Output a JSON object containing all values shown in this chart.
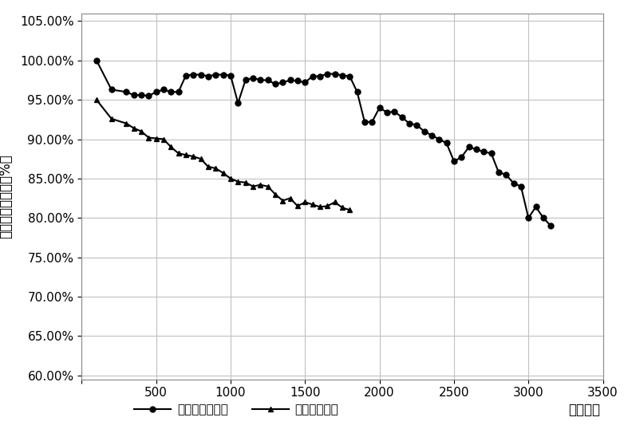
{
  "series1_name": "本发明循环制式",
  "series2_name": "常规循环制式",
  "series1_marker": "o",
  "series2_marker": "^",
  "line_color": "#000000",
  "xlabel": "循环次数",
  "ylabel": "与额定能量比值（%）",
  "xlim": [
    0,
    3500
  ],
  "ylim": [
    0.595,
    1.06
  ],
  "xticks": [
    0,
    500,
    1000,
    1500,
    2000,
    2500,
    3000,
    3500
  ],
  "ytick_values": [
    0.6,
    0.65,
    0.7,
    0.75,
    0.8,
    0.85,
    0.9,
    0.95,
    1.0,
    1.05
  ],
  "ytick_labels": [
    "60.00%",
    "65.00%",
    "70.00%",
    "75.00%",
    "80.00%",
    "85.00%",
    "90.00%",
    "95.00%",
    "100.00%",
    "105.00%"
  ],
  "series1_x": [
    100,
    200,
    300,
    350,
    400,
    450,
    500,
    550,
    600,
    650,
    700,
    750,
    800,
    850,
    900,
    950,
    1000,
    1050,
    1100,
    1150,
    1200,
    1250,
    1300,
    1350,
    1400,
    1450,
    1500,
    1550,
    1600,
    1650,
    1700,
    1750,
    1800,
    1850,
    1900,
    1950,
    2000,
    2050,
    2100,
    2150,
    2200,
    2250,
    2300,
    2350,
    2400,
    2450,
    2500,
    2550,
    2600,
    2650,
    2700,
    2750,
    2800,
    2850,
    2900,
    2950,
    3000,
    3050,
    3100,
    3150
  ],
  "series1_y": [
    1.0,
    0.963,
    0.96,
    0.956,
    0.956,
    0.955,
    0.96,
    0.963,
    0.96,
    0.96,
    0.981,
    0.982,
    0.982,
    0.98,
    0.982,
    0.982,
    0.981,
    0.946,
    0.975,
    0.978,
    0.975,
    0.975,
    0.97,
    0.972,
    0.975,
    0.974,
    0.972,
    0.98,
    0.98,
    0.983,
    0.983,
    0.981,
    0.98,
    0.96,
    0.922,
    0.922,
    0.94,
    0.934,
    0.935,
    0.928,
    0.92,
    0.918,
    0.91,
    0.905,
    0.9,
    0.895,
    0.872,
    0.877,
    0.89,
    0.887,
    0.884,
    0.882,
    0.858,
    0.855,
    0.844,
    0.84,
    0.8,
    0.814,
    0.8,
    0.79
  ],
  "series2_x": [
    100,
    200,
    300,
    350,
    400,
    450,
    500,
    550,
    600,
    650,
    700,
    750,
    800,
    850,
    900,
    950,
    1000,
    1050,
    1100,
    1150,
    1200,
    1250,
    1300,
    1350,
    1400,
    1450,
    1500,
    1550,
    1600,
    1650,
    1700,
    1750,
    1800
  ],
  "series2_y": [
    0.95,
    0.926,
    0.92,
    0.914,
    0.91,
    0.902,
    0.901,
    0.9,
    0.89,
    0.882,
    0.88,
    0.878,
    0.875,
    0.865,
    0.863,
    0.857,
    0.85,
    0.846,
    0.845,
    0.84,
    0.842,
    0.84,
    0.83,
    0.822,
    0.825,
    0.815,
    0.82,
    0.817,
    0.814,
    0.815,
    0.82,
    0.813,
    0.81
  ],
  "background_color": "#ffffff",
  "grid_color": "#c0c0c0",
  "font_size": 11,
  "label_font_size": 12,
  "marker_size": 5,
  "line_width": 1.5
}
